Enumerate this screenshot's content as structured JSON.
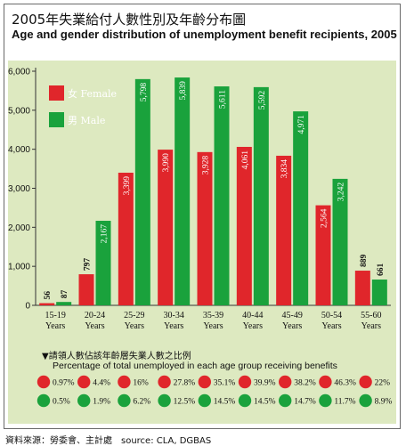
{
  "titles": {
    "zh": "2005年失業給付人數性別及年齡分布圖",
    "en": "Age and gender distribution of unemployment benefit recipients, 2005"
  },
  "rate_section": {
    "heading": "▼請領人數佔該年齡層失業人數之比例",
    "subheading": "Percentage of total unemployed in each age group receiving benefits"
  },
  "source": "資料來源：勞委會、主計處　source: CLA, DGBAS",
  "colors": {
    "female": "#e0262b",
    "male": "#1aa23c",
    "panel": "#dde9c0"
  },
  "chart_data": [
    {
      "type": "bar",
      "categories": [
        "15-19",
        "20-24",
        "25-29",
        "30-34",
        "35-39",
        "40-44",
        "45-49",
        "50-54",
        "55-60"
      ],
      "category_unit": "Years",
      "series": [
        {
          "name": "女 Female",
          "values": [
            56,
            797,
            3399,
            3990,
            3928,
            4061,
            3834,
            2564,
            889
          ]
        },
        {
          "name": "男 Male",
          "values": [
            87,
            2167,
            5798,
            5839,
            5611,
            5592,
            4971,
            3242,
            661
          ]
        }
      ],
      "value_labels": {
        "female": [
          "56",
          "797",
          "3,399",
          "3,990",
          "3,928",
          "4,061",
          "3,834",
          "2,564",
          "889"
        ],
        "male": [
          "87",
          "2,167",
          "5,798",
          "5,839",
          "5,611",
          "5,592",
          "4,971",
          "3,242",
          "661"
        ]
      },
      "y_ticks": [
        "0",
        "1,000",
        "2,000",
        "3,000",
        "4,000",
        "5,000",
        "6,000"
      ],
      "ylim": [
        0,
        6000
      ],
      "grid": false,
      "legend": "top-left"
    },
    {
      "type": "table",
      "categories": [
        "15-19",
        "20-24",
        "25-29",
        "30-34",
        "35-39",
        "40-44",
        "45-49",
        "50-54",
        "55-60"
      ],
      "series": [
        {
          "name": "Female",
          "values": [
            "0.97%",
            "4.4%",
            "16%",
            "27.8%",
            "35.1%",
            "39.9%",
            "38.2%",
            "46.3%",
            "22%"
          ]
        },
        {
          "name": "Male",
          "values": [
            "0.5%",
            "1.9%",
            "6.2%",
            "12.5%",
            "14.5%",
            "14.5%",
            "14.7%",
            "11.7%",
            "8.9%"
          ]
        }
      ]
    }
  ]
}
